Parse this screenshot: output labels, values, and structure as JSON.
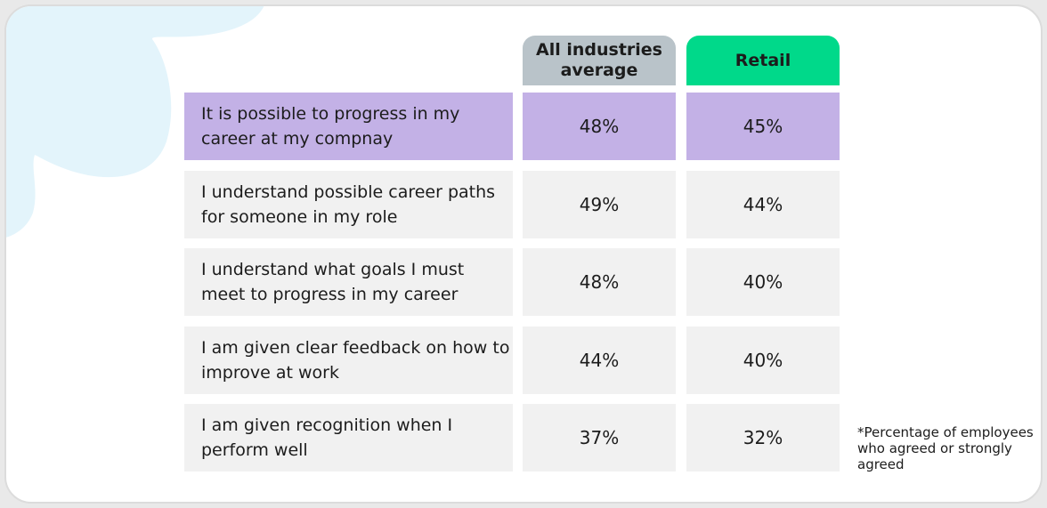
{
  "colors": {
    "highlight": "#c3b1e6",
    "row": "#f1f1f1",
    "header_avg": "#b9c3c9",
    "header_retail": "#00d98a",
    "decor_blob": "#e3f4fb"
  },
  "chart_data": {
    "type": "table",
    "title": "",
    "columns": [
      "All industries average",
      "Retail"
    ],
    "rows": [
      {
        "label": "It is possible to progress in my career at my compnay",
        "values": [
          "48%",
          "45%"
        ],
        "highlighted": true
      },
      {
        "label": "I understand possible career paths for someone in my role",
        "values": [
          "49%",
          "44%"
        ],
        "highlighted": false
      },
      {
        "label": "I understand what goals I must meet to progress in my career",
        "values": [
          "48%",
          "40%"
        ],
        "highlighted": false
      },
      {
        "label": "I am given clear feedback on how to improve at work",
        "values": [
          "44%",
          "40%"
        ],
        "highlighted": false
      },
      {
        "label": "I am given recognition when I perform well",
        "values": [
          "37%",
          "32%"
        ],
        "highlighted": false
      }
    ],
    "footnote": "*Percentage of employees who agreed or strongly agreed"
  }
}
